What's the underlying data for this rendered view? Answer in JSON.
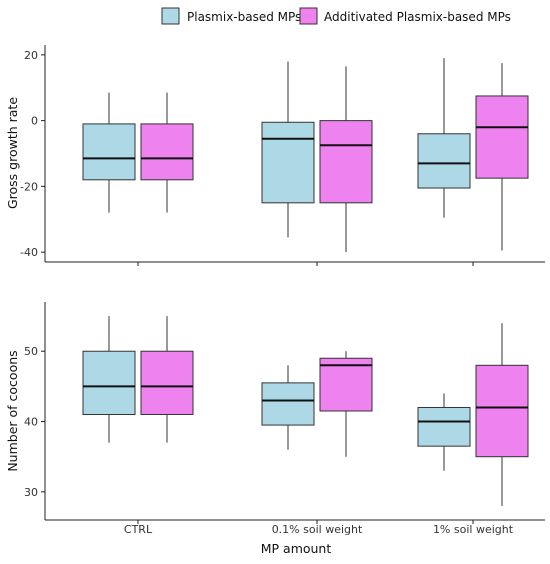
{
  "chart_data": {
    "type": "box",
    "legend": {
      "placement": "top",
      "items": [
        {
          "label": "Plasmix-based MPs",
          "color": "#add8e6"
        },
        {
          "label": "Additivated Plasmix-based MPs",
          "color": "#ee82ee"
        }
      ]
    },
    "x": {
      "title": "MP amount",
      "categories": [
        "CTRL",
        "0.1% soil weight",
        "1% soil weight"
      ]
    },
    "panels": [
      {
        "ylabel": "Gross growth rate",
        "ylim": [
          -43,
          23
        ],
        "yticks": [
          -40,
          -20,
          0,
          20
        ],
        "series": [
          {
            "name": "Plasmix-based MPs",
            "color": "#add8e6",
            "boxes": [
              {
                "min": -28,
                "q1": -18,
                "median": -11.5,
                "q3": -1,
                "max": 8.5
              },
              {
                "min": -35.5,
                "q1": -25,
                "median": -5.5,
                "q3": -0.5,
                "max": 18
              },
              {
                "min": -29.5,
                "q1": -20.5,
                "median": -13,
                "q3": -4,
                "max": 19
              }
            ]
          },
          {
            "name": "Additivated Plasmix-based MPs",
            "color": "#ee82ee",
            "boxes": [
              {
                "min": -28,
                "q1": -18,
                "median": -11.5,
                "q3": -1,
                "max": 8.5
              },
              {
                "min": -40,
                "q1": -25,
                "median": -7.5,
                "q3": 0,
                "max": 16.5
              },
              {
                "min": -39.5,
                "q1": -17.5,
                "median": -2,
                "q3": 7.5,
                "max": 17.5
              }
            ]
          }
        ]
      },
      {
        "ylabel": "Number of cocoons",
        "ylim": [
          26,
          57
        ],
        "yticks": [
          30,
          40,
          50
        ],
        "series": [
          {
            "name": "Plasmix-based MPs",
            "color": "#add8e6",
            "boxes": [
              {
                "min": 37,
                "q1": 41,
                "median": 45,
                "q3": 50,
                "max": 55
              },
              {
                "min": 36,
                "q1": 39.5,
                "median": 43,
                "q3": 45.5,
                "max": 48
              },
              {
                "min": 33,
                "q1": 36.5,
                "median": 40,
                "q3": 42,
                "max": 44
              }
            ]
          },
          {
            "name": "Additivated Plasmix-based MPs",
            "color": "#ee82ee",
            "boxes": [
              {
                "min": 37,
                "q1": 41,
                "median": 45,
                "q3": 50,
                "max": 55
              },
              {
                "min": 35,
                "q1": 41.5,
                "median": 48,
                "q3": 49,
                "max": 50
              },
              {
                "min": 28,
                "q1": 35,
                "median": 42,
                "q3": 48,
                "max": 54
              }
            ]
          }
        ]
      }
    ]
  }
}
